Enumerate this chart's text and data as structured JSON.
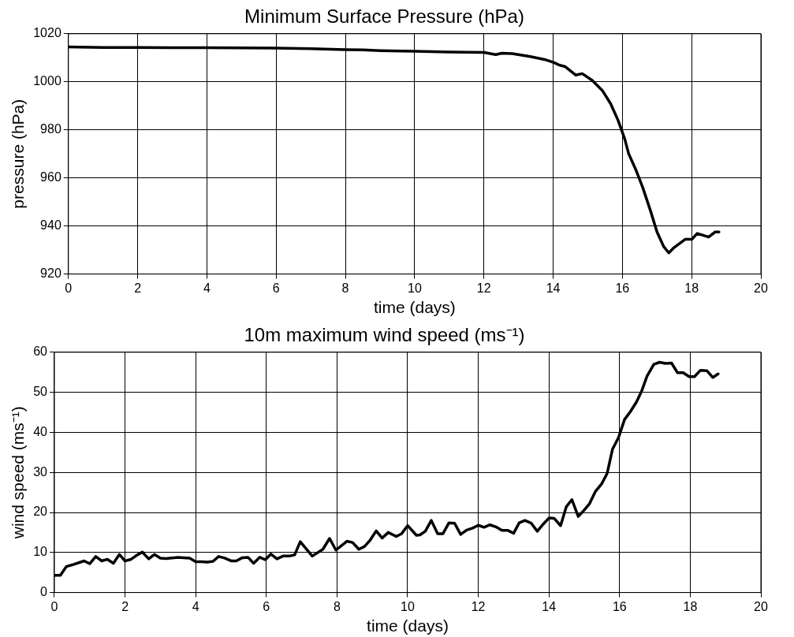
{
  "chart_data": [
    {
      "type": "line",
      "title": "Minimum Surface Pressure (hPa)",
      "xlabel": "time (days)",
      "ylabel": "pressure (hPa)",
      "xlim": [
        0,
        20
      ],
      "xticks": [
        0,
        2,
        4,
        6,
        8,
        10,
        12,
        14,
        16,
        18,
        20
      ],
      "ylim": [
        920,
        1020
      ],
      "yticks": [
        920,
        940,
        960,
        980,
        1000,
        1020
      ],
      "grid": true,
      "marker": "none",
      "line_style": "solid",
      "legend": false,
      "series": [
        {
          "color": "#000000",
          "x": [
            0,
            1,
            2,
            3,
            4,
            5,
            6,
            7,
            8,
            8.5,
            9,
            10,
            11,
            12,
            12.34,
            12.52,
            12.82,
            13.34,
            13.75,
            14.01,
            14.19,
            14.35,
            14.65,
            14.84,
            15.13,
            15.43,
            15.66,
            15.88,
            16.07,
            16.18,
            16.4,
            16.59,
            16.81,
            17,
            17.19,
            17.34,
            17.49,
            17.82,
            18.01,
            18.16,
            18.49,
            18.68,
            18.79
          ],
          "values": [
            1014.5,
            1014.3,
            1014.3,
            1014.2,
            1014.2,
            1014.1,
            1014,
            1013.8,
            1013.4,
            1013.3,
            1013,
            1012.7,
            1012.4,
            1012.2,
            1011.3,
            1011.9,
            1011.7,
            1010.5,
            1009.3,
            1008.1,
            1006.9,
            1006.3,
            1002.8,
            1003.4,
            1000.6,
            996.2,
            990.9,
            983.8,
            976.1,
            970.1,
            963,
            955.9,
            946.4,
            937.5,
            931.5,
            928.8,
            931,
            934.5,
            934.5,
            936.9,
            935.4,
            937.5,
            937.5
          ]
        }
      ]
    },
    {
      "type": "line",
      "title": "10m maximum wind speed (ms⁻¹)",
      "xlabel": "time (days)",
      "ylabel": "wind speed (ms⁻¹)",
      "xlim": [
        0,
        20
      ],
      "xticks": [
        0,
        2,
        4,
        6,
        8,
        10,
        12,
        14,
        16,
        18,
        20
      ],
      "ylim": [
        0,
        60
      ],
      "yticks": [
        0,
        10,
        20,
        30,
        40,
        50,
        60
      ],
      "grid": true,
      "marker": "none",
      "line_style": "solid",
      "legend": false,
      "series": [
        {
          "color": "#000000",
          "x": [
            0,
            0.17,
            0.34,
            0.5,
            0.84,
            1,
            1.17,
            1.34,
            1.5,
            1.67,
            1.84,
            2,
            2.17,
            2.33,
            2.49,
            2.67,
            2.83,
            3,
            3.16,
            3.5,
            3.83,
            4,
            4.17,
            4.33,
            4.49,
            4.65,
            4.82,
            5,
            5.15,
            5.32,
            5.48,
            5.64,
            5.81,
            5.97,
            6.13,
            6.3,
            6.47,
            6.64,
            6.8,
            6.96,
            7.3,
            7.6,
            7.79,
            7.97,
            8.28,
            8.44,
            8.62,
            8.78,
            8.94,
            9.11,
            9.28,
            9.45,
            9.68,
            9.83,
            10,
            10.25,
            10.35,
            10.5,
            10.67,
            10.85,
            11,
            11.17,
            11.33,
            11.5,
            11.67,
            11.84,
            12,
            12.16,
            12.33,
            12.5,
            12.67,
            12.84,
            13,
            13.16,
            13.32,
            13.5,
            13.67,
            13.84,
            14,
            14.15,
            14.33,
            14.49,
            14.65,
            14.83,
            15,
            15.15,
            15.32,
            15.49,
            15.65,
            15.8,
            15.97,
            16.14,
            16.3,
            16.48,
            16.62,
            16.78,
            16.97,
            17.13,
            17.3,
            17.47,
            17.64,
            17.8,
            17.97,
            18.12,
            18.29,
            18.47,
            18.64,
            18.79
          ],
          "values": [
            4.3,
            4.3,
            6.5,
            6.9,
            7.9,
            7.2,
            9,
            7.9,
            8.3,
            7.3,
            9.5,
            7.9,
            8.3,
            9.3,
            10.1,
            8.4,
            9.5,
            8.6,
            8.5,
            8.8,
            8.6,
            7.7,
            7.7,
            7.6,
            7.8,
            9,
            8.6,
            7.9,
            7.9,
            8.7,
            8.8,
            7.3,
            8.8,
            8.2,
            9.6,
            8.4,
            9.1,
            9.1,
            9.4,
            12.7,
            9.1,
            10.8,
            13.5,
            10.6,
            12.8,
            12.5,
            10.8,
            11.5,
            13.1,
            15.4,
            13.6,
            15,
            14,
            14.7,
            16.7,
            14.3,
            14.4,
            15.3,
            18,
            14.7,
            14.7,
            17.4,
            17.3,
            14.5,
            15.6,
            16.1,
            16.8,
            16.3,
            16.9,
            16.4,
            15.5,
            15.5,
            14.8,
            17.4,
            18,
            17.3,
            15.3,
            17.1,
            18.6,
            18.5,
            16.7,
            21.4,
            23.2,
            19,
            20.6,
            22.2,
            25.3,
            27.1,
            29.8,
            35.8,
            38.7,
            43.2,
            45.1,
            47.6,
            50.2,
            54.1,
            57,
            57.5,
            57.2,
            57.3,
            54.9,
            54.9,
            53.9,
            53.9,
            55.5,
            55.4,
            53.7,
            54.6
          ]
        }
      ]
    }
  ]
}
